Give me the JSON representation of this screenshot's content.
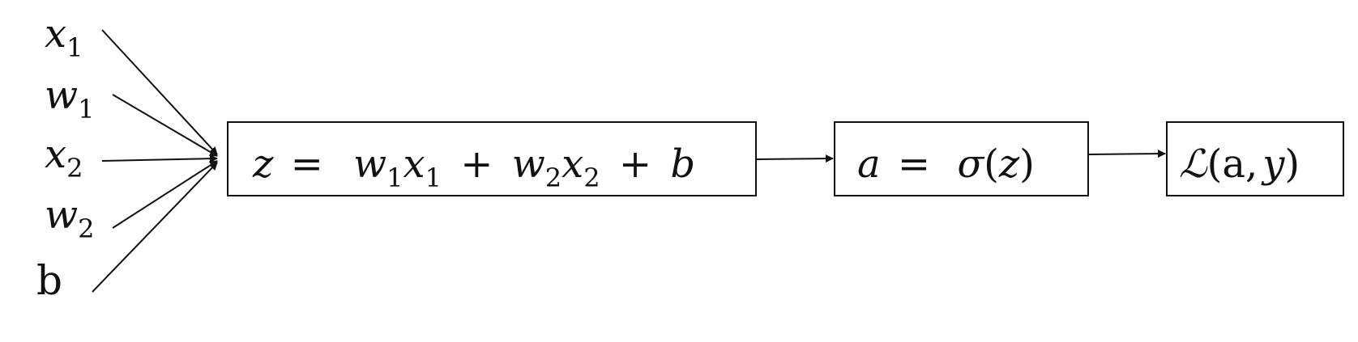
{
  "inputs": [
    {
      "symbol": "x",
      "subscript": "1"
    },
    {
      "symbol": "w",
      "subscript": "1"
    },
    {
      "symbol": "x",
      "subscript": "2"
    },
    {
      "symbol": "w",
      "subscript": "2"
    },
    {
      "symbol": "b",
      "subscript": ""
    }
  ],
  "nodes": {
    "linear": {
      "lhs": "z",
      "eq": "=",
      "w1": "w",
      "w1_sub": "1",
      "x1": "x",
      "x1_sub": "1",
      "plus1": "+",
      "w2": "w",
      "w2_sub": "2",
      "x2": "x",
      "x2_sub": "2",
      "plus2": "+",
      "b": "b"
    },
    "activation": {
      "lhs": "a",
      "eq": "=",
      "func": "σ",
      "open": "(",
      "arg": "z",
      "close": ")"
    },
    "loss": {
      "func": "ℒ",
      "open": "(",
      "arg1": "a",
      "comma": ",",
      "arg2": "y",
      "close": ")"
    }
  },
  "colors": {
    "ink": "#111111",
    "background": "#ffffff"
  }
}
